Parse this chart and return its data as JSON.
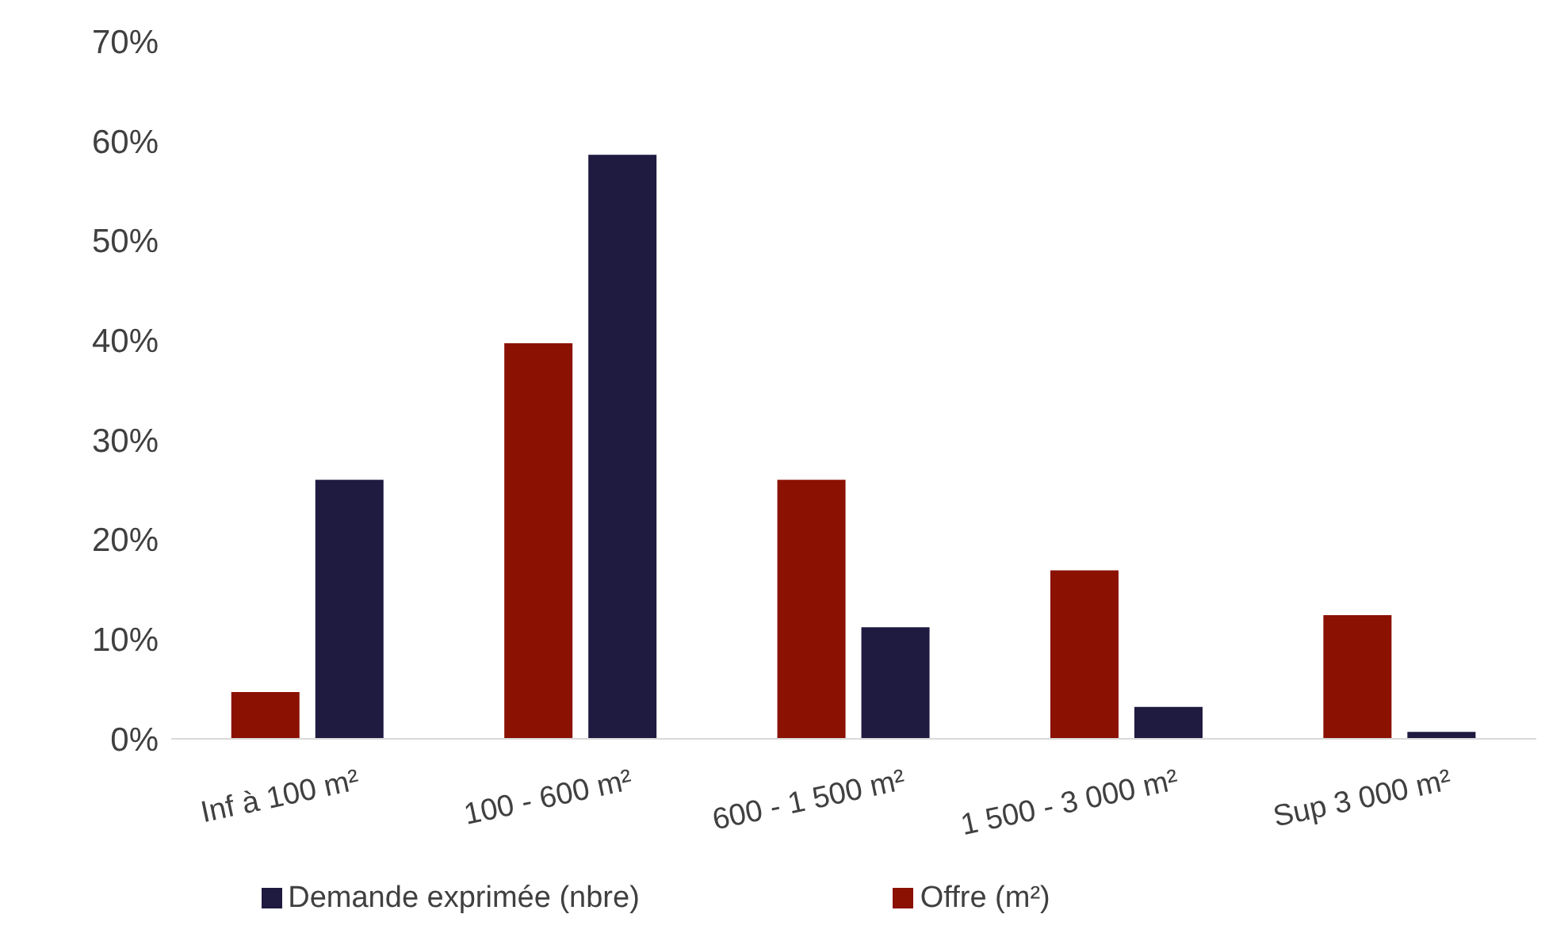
{
  "chart_data": {
    "type": "bar",
    "categories": [
      "Inf  à 100 m²",
      "100 - 600 m²",
      "600 - 1 500 m²",
      "1 500 - 3 000 m²",
      "Sup 3 000 m²"
    ],
    "series": [
      {
        "name": "Offre (m²)",
        "color": "#8b1103",
        "values": [
          4.7,
          39.7,
          26,
          16.9,
          12.4
        ]
      },
      {
        "name": "Demande exprimée (nbre)",
        "color": "#1e1a40",
        "values": [
          26,
          58.6,
          11.2,
          3.2,
          0.7
        ]
      }
    ],
    "ylim": [
      0,
      70
    ],
    "yticks": [
      {
        "value": 0,
        "label": "0%"
      },
      {
        "value": 10,
        "label": "10%"
      },
      {
        "value": 20,
        "label": "20%"
      },
      {
        "value": 30,
        "label": "30%"
      },
      {
        "value": 40,
        "label": "40%"
      },
      {
        "value": 50,
        "label": "50%"
      },
      {
        "value": 60,
        "label": "60%"
      },
      {
        "value": 70,
        "label": "70%"
      }
    ],
    "grid": false,
    "legend": "bottom"
  }
}
